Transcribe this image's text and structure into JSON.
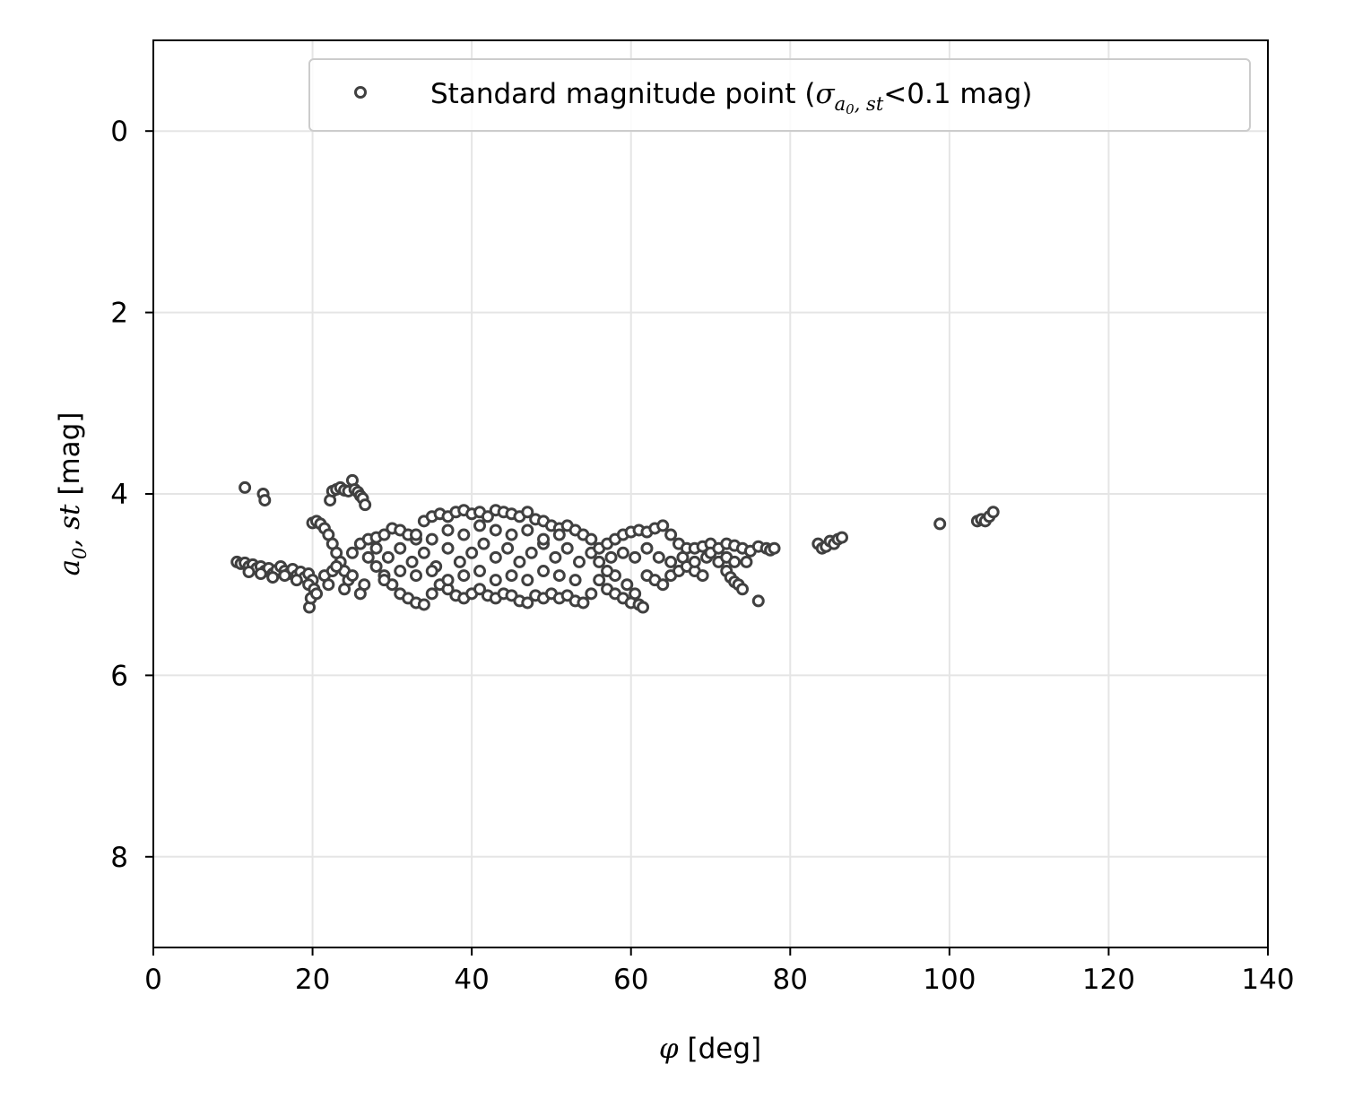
{
  "chart_data": {
    "type": "scatter",
    "xlabel": "[deg]",
    "xlabel_symbol": "φ",
    "ylabel": "[mag]",
    "ylabel_symbol_a": "a",
    "ylabel_symbol_sub": "0",
    "ylabel_symbol_rest": ", st",
    "xlim": [
      0,
      140
    ],
    "ylim": [
      9,
      -1
    ],
    "y_inverted": true,
    "xticks": [
      0,
      20,
      40,
      60,
      80,
      100,
      120,
      140
    ],
    "yticks": [
      0,
      2,
      4,
      6,
      8
    ],
    "grid": true,
    "legend_position": "top-right",
    "legend": {
      "prefix": "Standard magnitude point (",
      "sigma": "σ",
      "sub_a": "a",
      "sub_0": "0",
      "sub_rest": ", st",
      "suffix": "<0.1 mag)"
    },
    "marker_color": "#404040",
    "grid_color": "#e5e5e5",
    "series": [
      {
        "marker": "open-circle",
        "points": [
          [
            10.5,
            4.75
          ],
          [
            11.0,
            4.77
          ],
          [
            11.5,
            4.76
          ],
          [
            12.0,
            4.8
          ],
          [
            12.5,
            4.78
          ],
          [
            13.0,
            4.82
          ],
          [
            13.5,
            4.8
          ],
          [
            14.0,
            4.85
          ],
          [
            14.5,
            4.82
          ],
          [
            15.0,
            4.88
          ],
          [
            15.5,
            4.84
          ],
          [
            16.0,
            4.8
          ],
          [
            16.5,
            4.85
          ],
          [
            17.0,
            4.88
          ],
          [
            17.5,
            4.83
          ],
          [
            18.0,
            4.9
          ],
          [
            18.5,
            4.86
          ],
          [
            19.0,
            4.92
          ],
          [
            19.5,
            4.88
          ],
          [
            20.0,
            4.95
          ],
          [
            12.0,
            4.86
          ],
          [
            13.5,
            4.88
          ],
          [
            15.0,
            4.92
          ],
          [
            16.5,
            4.9
          ],
          [
            18.0,
            4.95
          ],
          [
            19.5,
            5.0
          ],
          [
            11.5,
            3.93
          ],
          [
            13.8,
            4.0
          ],
          [
            14.0,
            4.07
          ],
          [
            19.6,
            5.25
          ],
          [
            19.8,
            5.15
          ],
          [
            20.2,
            5.05
          ],
          [
            20.5,
            5.1
          ],
          [
            20.0,
            4.32
          ],
          [
            20.5,
            4.3
          ],
          [
            21.0,
            4.33
          ],
          [
            21.5,
            4.38
          ],
          [
            22.0,
            4.45
          ],
          [
            22.5,
            4.55
          ],
          [
            23.0,
            4.65
          ],
          [
            23.5,
            4.75
          ],
          [
            24.0,
            4.85
          ],
          [
            24.5,
            4.95
          ],
          [
            21.5,
            4.9
          ],
          [
            22.0,
            5.0
          ],
          [
            22.5,
            4.85
          ],
          [
            23.0,
            4.8
          ],
          [
            24.0,
            5.05
          ],
          [
            25.0,
            4.9
          ],
          [
            26.0,
            5.1
          ],
          [
            26.5,
            5.0
          ],
          [
            22.2,
            4.07
          ],
          [
            22.5,
            3.97
          ],
          [
            23.0,
            3.95
          ],
          [
            23.5,
            3.93
          ],
          [
            24.0,
            3.96
          ],
          [
            24.5,
            3.97
          ],
          [
            25.0,
            3.85
          ],
          [
            25.3,
            3.95
          ],
          [
            25.7,
            3.98
          ],
          [
            26.0,
            4.02
          ],
          [
            26.3,
            4.05
          ],
          [
            26.6,
            4.12
          ],
          [
            25.0,
            4.65
          ],
          [
            26.0,
            4.55
          ],
          [
            27.0,
            4.5
          ],
          [
            28.0,
            4.48
          ],
          [
            29.0,
            4.45
          ],
          [
            30.0,
            4.38
          ],
          [
            31.0,
            4.4
          ],
          [
            32.0,
            4.45
          ],
          [
            33.0,
            4.5
          ],
          [
            34.0,
            4.3
          ],
          [
            35.0,
            4.25
          ],
          [
            36.0,
            4.22
          ],
          [
            37.0,
            4.25
          ],
          [
            38.0,
            4.2
          ],
          [
            39.0,
            4.18
          ],
          [
            40.0,
            4.22
          ],
          [
            41.0,
            4.2
          ],
          [
            42.0,
            4.25
          ],
          [
            43.0,
            4.18
          ],
          [
            44.0,
            4.2
          ],
          [
            45.0,
            4.22
          ],
          [
            46.0,
            4.25
          ],
          [
            47.0,
            4.2
          ],
          [
            48.0,
            4.28
          ],
          [
            49.0,
            4.3
          ],
          [
            50.0,
            4.35
          ],
          [
            51.0,
            4.38
          ],
          [
            52.0,
            4.35
          ],
          [
            53.0,
            4.4
          ],
          [
            54.0,
            4.45
          ],
          [
            55.0,
            4.5
          ],
          [
            27.0,
            4.7
          ],
          [
            28.0,
            4.8
          ],
          [
            29.0,
            4.9
          ],
          [
            30.0,
            5.0
          ],
          [
            31.0,
            5.1
          ],
          [
            32.0,
            5.15
          ],
          [
            33.0,
            5.2
          ],
          [
            34.0,
            5.22
          ],
          [
            35.0,
            5.1
          ],
          [
            36.0,
            5.0
          ],
          [
            37.0,
            5.05
          ],
          [
            38.0,
            5.12
          ],
          [
            39.0,
            5.15
          ],
          [
            40.0,
            5.1
          ],
          [
            41.0,
            5.05
          ],
          [
            42.0,
            5.12
          ],
          [
            43.0,
            5.15
          ],
          [
            44.0,
            5.1
          ],
          [
            45.0,
            5.12
          ],
          [
            46.0,
            5.18
          ],
          [
            47.0,
            5.2
          ],
          [
            48.0,
            5.12
          ],
          [
            49.0,
            5.15
          ],
          [
            50.0,
            5.1
          ],
          [
            51.0,
            5.15
          ],
          [
            52.0,
            5.12
          ],
          [
            53.0,
            5.18
          ],
          [
            54.0,
            5.2
          ],
          [
            55.0,
            5.1
          ],
          [
            28.0,
            4.6
          ],
          [
            29.5,
            4.7
          ],
          [
            31.0,
            4.6
          ],
          [
            32.5,
            4.75
          ],
          [
            34.0,
            4.65
          ],
          [
            35.5,
            4.8
          ],
          [
            37.0,
            4.6
          ],
          [
            38.5,
            4.75
          ],
          [
            40.0,
            4.65
          ],
          [
            41.5,
            4.55
          ],
          [
            43.0,
            4.7
          ],
          [
            44.5,
            4.6
          ],
          [
            46.0,
            4.75
          ],
          [
            47.5,
            4.65
          ],
          [
            49.0,
            4.55
          ],
          [
            50.5,
            4.7
          ],
          [
            52.0,
            4.6
          ],
          [
            53.5,
            4.75
          ],
          [
            55.0,
            4.65
          ],
          [
            29.0,
            4.95
          ],
          [
            31.0,
            4.85
          ],
          [
            33.0,
            4.9
          ],
          [
            35.0,
            4.85
          ],
          [
            37.0,
            4.95
          ],
          [
            39.0,
            4.9
          ],
          [
            41.0,
            4.85
          ],
          [
            43.0,
            4.95
          ],
          [
            45.0,
            4.9
          ],
          [
            47.0,
            4.95
          ],
          [
            49.0,
            4.85
          ],
          [
            51.0,
            4.9
          ],
          [
            53.0,
            4.95
          ],
          [
            33.0,
            4.45
          ],
          [
            35.0,
            4.5
          ],
          [
            37.0,
            4.4
          ],
          [
            39.0,
            4.45
          ],
          [
            41.0,
            4.35
          ],
          [
            43.0,
            4.4
          ],
          [
            45.0,
            4.45
          ],
          [
            47.0,
            4.4
          ],
          [
            49.0,
            4.5
          ],
          [
            51.0,
            4.45
          ],
          [
            56.0,
            4.6
          ],
          [
            57.0,
            4.55
          ],
          [
            58.0,
            4.5
          ],
          [
            59.0,
            4.45
          ],
          [
            60.0,
            4.42
          ],
          [
            61.0,
            4.4
          ],
          [
            62.0,
            4.42
          ],
          [
            63.0,
            4.38
          ],
          [
            64.0,
            4.35
          ],
          [
            65.0,
            4.45
          ],
          [
            66.0,
            4.55
          ],
          [
            67.0,
            4.6
          ],
          [
            68.0,
            4.6
          ],
          [
            69.0,
            4.58
          ],
          [
            70.0,
            4.55
          ],
          [
            56.0,
            4.95
          ],
          [
            57.0,
            5.05
          ],
          [
            58.0,
            5.1
          ],
          [
            59.0,
            5.15
          ],
          [
            60.0,
            5.2
          ],
          [
            61.0,
            5.22
          ],
          [
            61.5,
            5.25
          ],
          [
            60.5,
            5.1
          ],
          [
            59.5,
            5.0
          ],
          [
            58.0,
            4.9
          ],
          [
            57.0,
            4.85
          ],
          [
            62.0,
            4.9
          ],
          [
            63.0,
            4.95
          ],
          [
            64.0,
            5.0
          ],
          [
            65.0,
            4.9
          ],
          [
            66.0,
            4.85
          ],
          [
            67.0,
            4.8
          ],
          [
            68.0,
            4.85
          ],
          [
            69.0,
            4.9
          ],
          [
            56.0,
            4.75
          ],
          [
            57.5,
            4.7
          ],
          [
            59.0,
            4.65
          ],
          [
            60.5,
            4.7
          ],
          [
            62.0,
            4.6
          ],
          [
            63.5,
            4.7
          ],
          [
            65.0,
            4.75
          ],
          [
            66.5,
            4.7
          ],
          [
            68.0,
            4.75
          ],
          [
            69.5,
            4.7
          ],
          [
            71.0,
            4.75
          ],
          [
            70.0,
            4.65
          ],
          [
            71.0,
            4.6
          ],
          [
            72.0,
            4.55
          ],
          [
            73.0,
            4.57
          ],
          [
            74.0,
            4.6
          ],
          [
            75.0,
            4.63
          ],
          [
            76.0,
            4.58
          ],
          [
            77.0,
            4.6
          ],
          [
            77.5,
            4.62
          ],
          [
            78.0,
            4.6
          ],
          [
            72.0,
            4.7
          ],
          [
            73.0,
            4.75
          ],
          [
            74.5,
            4.75
          ],
          [
            72.0,
            4.85
          ],
          [
            72.5,
            4.92
          ],
          [
            73.0,
            4.97
          ],
          [
            73.5,
            5.0
          ],
          [
            74.0,
            5.05
          ],
          [
            76.0,
            5.18
          ],
          [
            83.5,
            4.55
          ],
          [
            84.0,
            4.6
          ],
          [
            84.5,
            4.58
          ],
          [
            85.0,
            4.52
          ],
          [
            85.5,
            4.55
          ],
          [
            86.0,
            4.5
          ],
          [
            86.5,
            4.48
          ],
          [
            98.8,
            4.33
          ],
          [
            103.5,
            4.3
          ],
          [
            104.0,
            4.28
          ],
          [
            104.5,
            4.3
          ],
          [
            105.0,
            4.25
          ],
          [
            105.5,
            4.2
          ]
        ]
      }
    ]
  }
}
